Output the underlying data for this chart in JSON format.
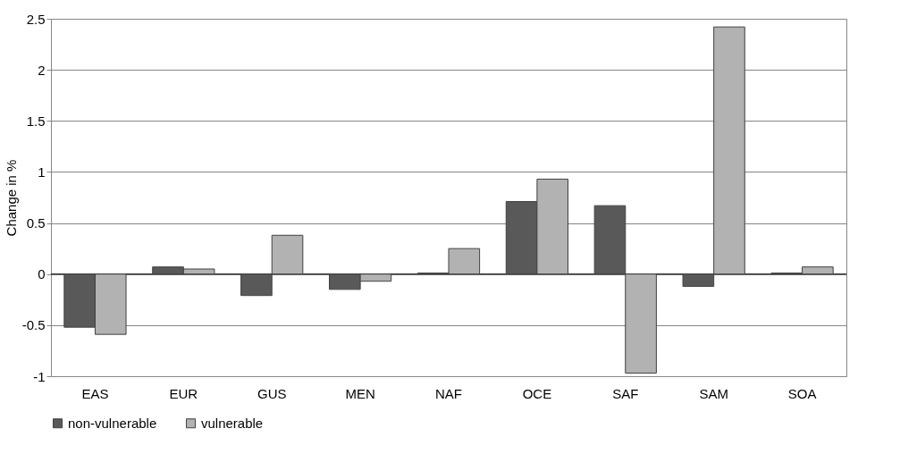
{
  "chart_data": {
    "type": "bar",
    "ylabel": "Change in %",
    "categories": [
      "EAS",
      "EUR",
      "GUS",
      "MEN",
      "NAF",
      "OCE",
      "SAF",
      "SAM",
      "SOA"
    ],
    "series": [
      {
        "name": "non-vulnerable",
        "color": "#595959",
        "values": [
          -0.52,
          0.07,
          -0.21,
          -0.15,
          0.01,
          0.71,
          0.67,
          -0.12,
          0.01
        ]
      },
      {
        "name": "vulnerable",
        "color": "#b2b2b2",
        "values": [
          -0.59,
          0.05,
          0.38,
          -0.07,
          0.25,
          0.93,
          -0.97,
          2.42,
          0.07
        ]
      }
    ],
    "ylim": [
      -1,
      2.5
    ],
    "yticks": [
      -1,
      -0.5,
      0,
      0.5,
      1,
      1.5,
      2,
      2.5
    ],
    "grid": "y",
    "legend": "bottom"
  }
}
